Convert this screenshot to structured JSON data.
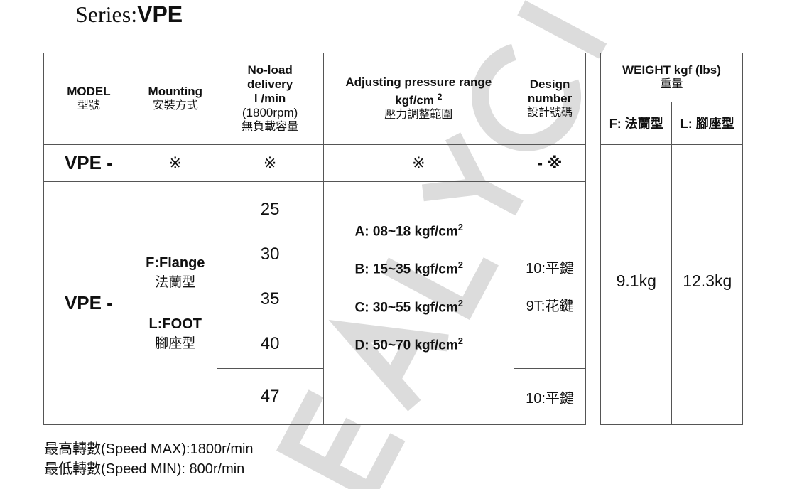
{
  "title": {
    "prefix": "Series:",
    "series": "VPE"
  },
  "watermark": "EALYCI",
  "table": {
    "headers": {
      "model": [
        "MODEL",
        "型號"
      ],
      "mounting": [
        "Mounting",
        "安裝方式"
      ],
      "delivery": [
        "No-load",
        "delivery",
        "l /min",
        "(1800rpm)",
        "無負載容量"
      ],
      "pressure": [
        "Adjusting pressure range",
        "kgf/cm",
        "2",
        "壓力調整範圍"
      ],
      "design": [
        "Design",
        "number",
        "設計號碼"
      ]
    },
    "code_row": {
      "model": "VPE -",
      "mounting": "※",
      "delivery": "※",
      "pressure": "※",
      "design": "- ※"
    },
    "model": "VPE -",
    "mounting": [
      {
        "code": "F:Flange",
        "zh": "法蘭型"
      },
      {
        "code": "L:FOOT",
        "zh": "腳座型"
      }
    ],
    "delivery_group1": [
      "25",
      "30",
      "35",
      "40"
    ],
    "delivery_group2": [
      "47"
    ],
    "pressure": [
      {
        "text": "A: 08~18 kgf/cm",
        "sup": "2"
      },
      {
        "text": "B: 15~35 kgf/cm",
        "sup": "2"
      },
      {
        "text": "C: 30~55 kgf/cm",
        "sup": "2"
      },
      {
        "text": "D: 50~70 kgf/cm",
        "sup": "2"
      }
    ],
    "design_group1": [
      "10:平鍵",
      "9T:花鍵"
    ],
    "design_group2": [
      "10:平鍵"
    ]
  },
  "weight": {
    "header": [
      "WEIGHT kgf (lbs)",
      "重量"
    ],
    "flange_label": "F: 法蘭型",
    "foot_label": "L: 腳座型",
    "flange_value": "9.1kg",
    "foot_value": "12.3kg"
  },
  "notes": [
    "最高轉數(Speed MAX):1800r/min",
    "最低轉數(Speed MIN): 800r/min"
  ]
}
